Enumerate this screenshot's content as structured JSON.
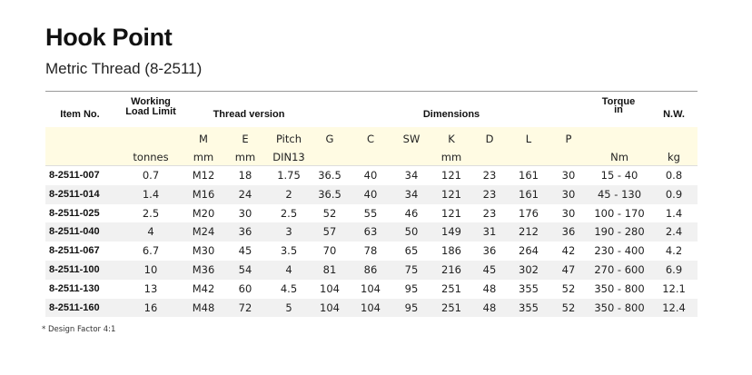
{
  "title": "Hook Point",
  "subtitle": "Metric  Thread (8-2511)",
  "headers": {
    "item": "Item No.",
    "wll": "Working\nLoad Limit",
    "thread": "Thread version",
    "dimensions": "Dimensions",
    "torque": "Torque\nin",
    "nw": "N.W."
  },
  "subheaders": {
    "M": "M",
    "E": "E",
    "Pitch": "Pitch",
    "G": "G",
    "C": "C",
    "SW": "SW",
    "K": "K",
    "D": "D",
    "L": "L",
    "P": "P"
  },
  "units": {
    "wll": "tonnes",
    "M": "mm",
    "E": "mm",
    "Pitch": "DIN13",
    "K": "mm",
    "torque": "Nm",
    "nw": "kg"
  },
  "rows": [
    [
      "8-2511-007",
      "0.7",
      "M12",
      "18",
      "1.75",
      "36.5",
      "40",
      "34",
      "121",
      "23",
      "161",
      "30",
      "15 - 40",
      "0.8"
    ],
    [
      "8-2511-014",
      "1.4",
      "M16",
      "24",
      "2",
      "36.5",
      "40",
      "34",
      "121",
      "23",
      "161",
      "30",
      "45 - 130",
      "0.9"
    ],
    [
      "8-2511-025",
      "2.5",
      "M20",
      "30",
      "2.5",
      "52",
      "55",
      "46",
      "121",
      "23",
      "176",
      "30",
      "100 - 170",
      "1.4"
    ],
    [
      "8-2511-040",
      "4",
      "M24",
      "36",
      "3",
      "57",
      "63",
      "50",
      "149",
      "31",
      "212",
      "36",
      "190 - 280",
      "2.4"
    ],
    [
      "8-2511-067",
      "6.7",
      "M30",
      "45",
      "3.5",
      "70",
      "78",
      "65",
      "186",
      "36",
      "264",
      "42",
      "230 - 400",
      "4.2"
    ],
    [
      "8-2511-100",
      "10",
      "M36",
      "54",
      "4",
      "81",
      "86",
      "75",
      "216",
      "45",
      "302",
      "47",
      "270 - 600",
      "6.9"
    ],
    [
      "8-2511-130",
      "13",
      "M42",
      "60",
      "4.5",
      "104",
      "104",
      "95",
      "251",
      "48",
      "355",
      "52",
      "350 - 800",
      "12.1"
    ],
    [
      "8-2511-160",
      "16",
      "M48",
      "72",
      "5",
      "104",
      "104",
      "95",
      "251",
      "48",
      "355",
      "52",
      "350 - 800",
      "12.4"
    ]
  ],
  "footnote": "*    Design Factor 4:1",
  "colors": {
    "header_band": "#fffbe3",
    "alt_row": "#f1f1f1"
  }
}
